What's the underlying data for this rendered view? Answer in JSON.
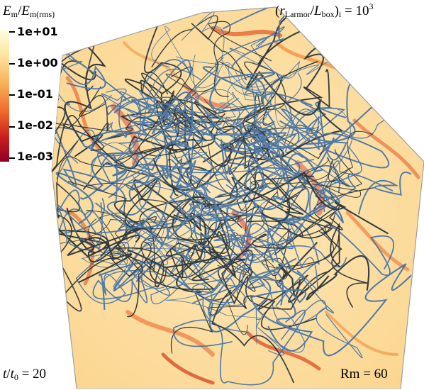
{
  "colorbar": {
    "title_numerator": "E",
    "title_numerator_sub": "m",
    "title_denominator": "E",
    "title_denominator_sub": "m(rms)",
    "ticks": [
      "1e+01",
      "1e+00",
      "1e-01",
      "1e-02",
      "1e-03"
    ],
    "colors": [
      "#fffbe0",
      "#fde7a4",
      "#f9b25c",
      "#ee6a2a",
      "#c81d1d",
      "#8c0022"
    ]
  },
  "larmor": {
    "open": "(",
    "r": "r",
    "r_sub": "Larmor",
    "L": "L",
    "L_sub": "box",
    "close": ")",
    "close_sub": "i",
    "eq": "= 10",
    "exp": "3"
  },
  "time": {
    "t": "t",
    "t0": "t",
    "t0_sub": "0",
    "eq": "= 20"
  },
  "rm": {
    "text": "Rm = 60"
  },
  "scene": {
    "cube_face_color": "#fcd99a",
    "line_color_blue": "#3d6fa8",
    "line_color_dark": "#1e2a35"
  }
}
